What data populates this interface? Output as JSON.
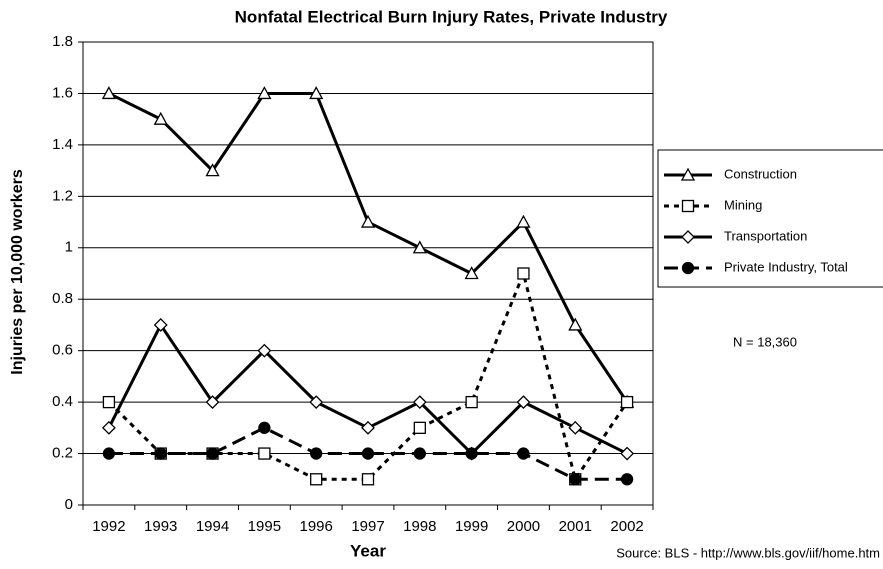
{
  "chart_data": {
    "type": "line",
    "title": "Nonfatal Electrical Burn Injury Rates, Private Industry",
    "x_label": "Year",
    "y_label": "Injuries per 10,000 workers",
    "annotation": "N = 18,360",
    "source": "Source: BLS - http://www.bls.gov/iif/home.htm",
    "categories": [
      "1992",
      "1993",
      "1994",
      "1995",
      "1996",
      "1997",
      "1998",
      "1999",
      "2000",
      "2001",
      "2002"
    ],
    "series": [
      {
        "name": "Construction",
        "color": "#000000",
        "line_style": "solid",
        "marker": "triangle",
        "values": [
          1.6,
          1.5,
          1.3,
          1.6,
          1.6,
          1.1,
          1.0,
          0.9,
          1.1,
          0.7,
          0.4
        ]
      },
      {
        "name": "Mining",
        "color": "#000000",
        "line_style": "dotted",
        "marker": "square",
        "values": [
          0.4,
          0.2,
          0.2,
          0.2,
          0.1,
          0.1,
          0.3,
          0.4,
          0.9,
          0.1,
          0.4
        ]
      },
      {
        "name": "Transportation",
        "color": "#000000",
        "line_style": "solid",
        "marker": "diamond",
        "values": [
          0.3,
          0.7,
          0.4,
          0.6,
          0.4,
          0.3,
          0.4,
          0.2,
          0.4,
          0.3,
          0.2
        ]
      },
      {
        "name": "Private Industry, Total",
        "color": "#000000",
        "line_style": "dashed",
        "marker": "circle",
        "values": [
          0.2,
          0.2,
          0.2,
          0.3,
          0.2,
          0.2,
          0.2,
          0.2,
          0.2,
          0.1,
          0.1
        ]
      }
    ],
    "ylim": [
      0,
      1.8
    ],
    "yticks": [
      0,
      0.2,
      0.4,
      0.6,
      0.8,
      1,
      1.2,
      1.4,
      1.6,
      1.8
    ],
    "grid": true,
    "legend": "right"
  }
}
